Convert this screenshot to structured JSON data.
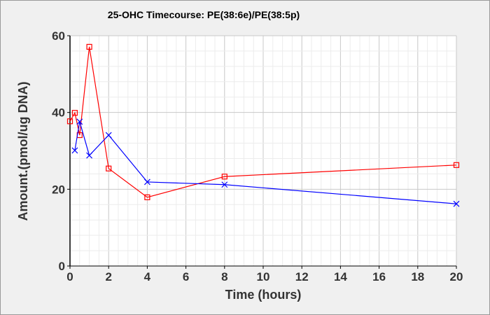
{
  "chart_data": {
    "type": "line",
    "title": "25-OHC Timecourse: PE(38:6e)/PE(38:5p)",
    "xlabel": "Time (hours)",
    "ylabel": "Amount.(pmol/ug DNA)",
    "xlim": [
      0,
      20
    ],
    "ylim": [
      0,
      60
    ],
    "xticks": [
      "0",
      "2",
      "4",
      "6",
      "8",
      "10",
      "12",
      "14",
      "16",
      "18",
      "20"
    ],
    "yticks": [
      "0",
      "20",
      "40",
      "60"
    ],
    "grid": true,
    "series": [
      {
        "color": "#ff0000",
        "marker": "square",
        "x": [
          0,
          0.25,
          0.5,
          1,
          2,
          4,
          8,
          20
        ],
        "y": [
          37.7,
          39.9,
          34.1,
          57.1,
          25.4,
          17.9,
          23.3,
          26.3
        ]
      },
      {
        "color": "#0000ff",
        "marker": "x",
        "x": [
          0.25,
          0.5,
          1,
          2,
          4,
          8,
          20
        ],
        "y": [
          30.1,
          37.6,
          28.8,
          34.1,
          21.9,
          21.2,
          16.2
        ]
      }
    ]
  }
}
